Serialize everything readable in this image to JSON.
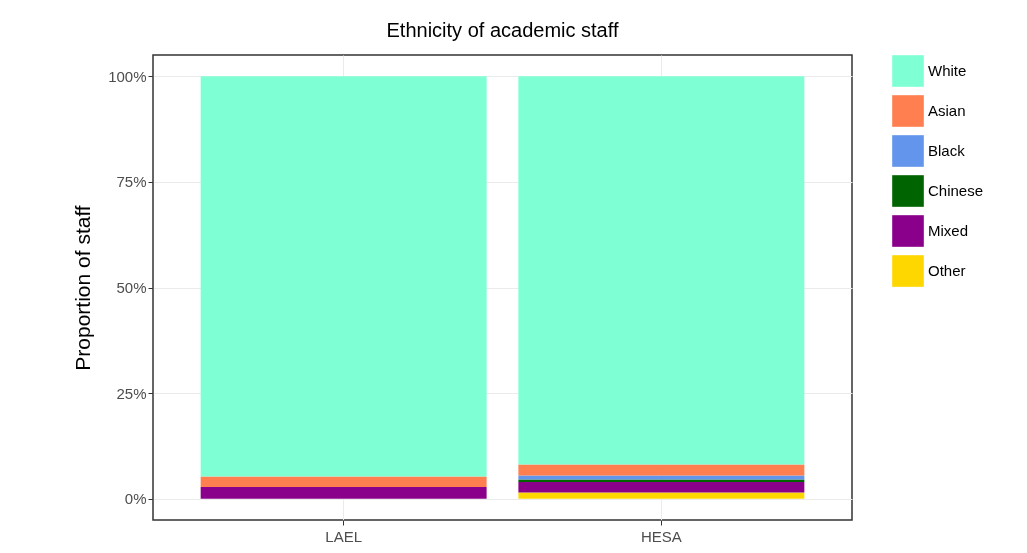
{
  "chart_data": {
    "type": "bar",
    "title": "Ethnicity of academic staff",
    "ylabel": "Proportion of staff",
    "categories": [
      "LAEL",
      "HESA"
    ],
    "stacked": true,
    "series": [
      {
        "name": "Other",
        "color": "#ffd700",
        "values": [
          0,
          1.5
        ]
      },
      {
        "name": "Mixed",
        "color": "#8b008b",
        "values": [
          2.8,
          2.5
        ]
      },
      {
        "name": "Chinese",
        "color": "#006400",
        "values": [
          0,
          0.6
        ]
      },
      {
        "name": "Black",
        "color": "#6495ed",
        "values": [
          0,
          0.9
        ]
      },
      {
        "name": "Asian",
        "color": "#ff7f50",
        "values": [
          2.5,
          2.6
        ]
      },
      {
        "name": "White",
        "color": "#7fffd4",
        "values": [
          94.7,
          91.9
        ]
      }
    ],
    "ylim": [
      -5,
      105
    ],
    "yticks": [
      {
        "value": 0,
        "label": "0%"
      },
      {
        "value": 25,
        "label": "25%"
      },
      {
        "value": 50,
        "label": "50%"
      },
      {
        "value": 75,
        "label": "75%"
      },
      {
        "value": 100,
        "label": "100%"
      }
    ],
    "grid": true,
    "legend": "right"
  }
}
